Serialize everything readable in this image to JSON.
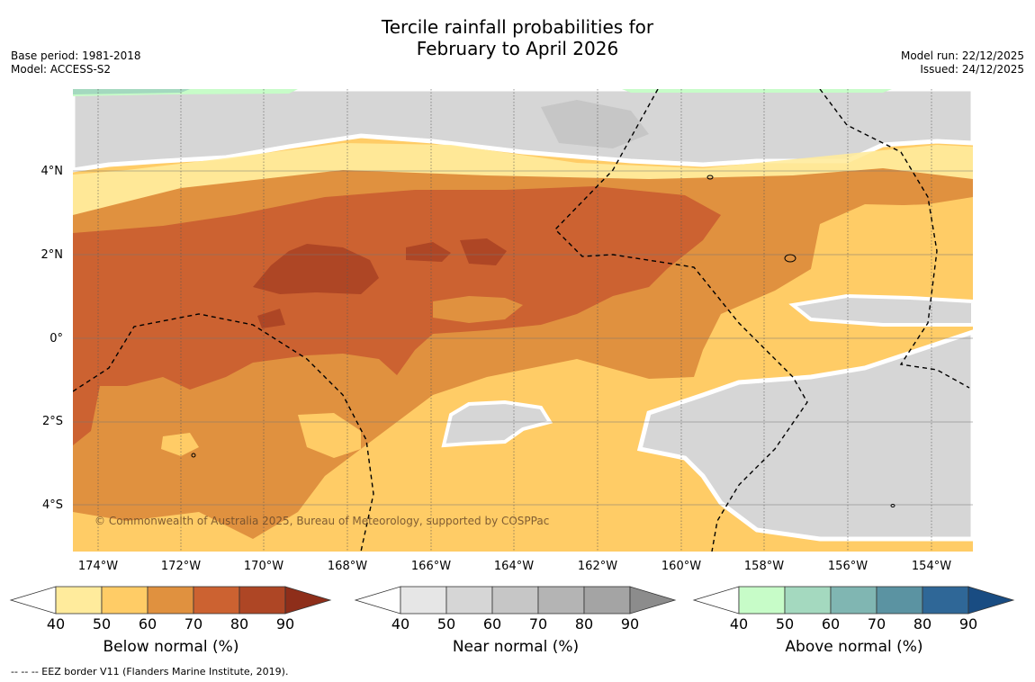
{
  "title_line1": "Tercile rainfall probabilities for",
  "title_line2": "February to April 2026",
  "meta_left": {
    "base_period": "Base period: 1981-2018",
    "model": "Model: ACCESS-S2"
  },
  "meta_right": {
    "model_run": "Model run: 22/12/2025",
    "issued": "Issued: 24/12/2025"
  },
  "lat_labels": [
    "4°N",
    "2°N",
    "0°",
    "2°S",
    "4°S"
  ],
  "lon_labels": [
    "174°W",
    "172°W",
    "170°W",
    "168°W",
    "166°W",
    "164°W",
    "162°W",
    "160°W",
    "158°W",
    "156°W",
    "154°W"
  ],
  "copyright": "© Commonwealth of Australia 2025, Bureau of Meteorology, supported by COSPPac",
  "footer": "-- -- -- EEZ border V11 (Flanders Marine Institute, 2019).",
  "colorbars": [
    {
      "label": "Below normal (%)",
      "ticks": [
        "40",
        "50",
        "60",
        "70",
        "80",
        "90"
      ],
      "colors": [
        "#ffffff",
        "#ffeb9c",
        "#ffcc66",
        "#e0913f",
        "#cc6231",
        "#ae4625",
        "#8e2e1a"
      ]
    },
    {
      "label": "Near normal (%)",
      "ticks": [
        "40",
        "50",
        "60",
        "70",
        "80",
        "90"
      ],
      "colors": [
        "#ffffff",
        "#e6e6e6",
        "#d6d6d6",
        "#c6c6c6",
        "#b4b4b4",
        "#a4a4a4",
        "#8c8c8c"
      ]
    },
    {
      "label": "Above normal (%)",
      "ticks": [
        "40",
        "50",
        "60",
        "70",
        "80",
        "90"
      ],
      "colors": [
        "#ffffff",
        "#c7fcc8",
        "#a4d9bf",
        "#80b6b2",
        "#5b93a2",
        "#2f6797",
        "#194c82"
      ]
    }
  ]
}
